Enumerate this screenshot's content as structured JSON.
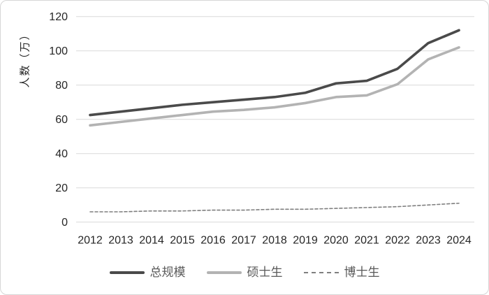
{
  "chart_data": {
    "type": "line",
    "title": "",
    "ylabel": "人数（万）",
    "xlabel": "",
    "ylim": [
      0,
      120
    ],
    "yticks": [
      0,
      20,
      40,
      60,
      80,
      100,
      120
    ],
    "grid": "horizontal",
    "grid_color": "#d9d9d9",
    "tick_text_color": "#262626",
    "legend_position": "bottom",
    "categories": [
      "2012",
      "2013",
      "2014",
      "2015",
      "2016",
      "2017",
      "2018",
      "2019",
      "2020",
      "2021",
      "2022",
      "2023",
      "2024"
    ],
    "series": [
      {
        "key": "total",
        "name": "总规模",
        "color": "#4a4a4a",
        "width": 3.6,
        "dash": null,
        "values": [
          62.5,
          64.5,
          66.5,
          68.5,
          70,
          71.5,
          73,
          75.5,
          81,
          82.5,
          89.5,
          104.5,
          112
        ]
      },
      {
        "key": "master",
        "name": "硕士生",
        "color": "#b3b3b3",
        "width": 3.6,
        "dash": null,
        "values": [
          56.5,
          58.5,
          60.5,
          62.5,
          64.5,
          65.5,
          67,
          69.5,
          73,
          74,
          80.5,
          95,
          102
        ]
      },
      {
        "key": "phd",
        "name": "博士生",
        "color": "#7f7f7f",
        "width": 1.6,
        "dash": "4 3",
        "values": [
          6,
          6,
          6.5,
          6.5,
          7,
          7,
          7.5,
          7.5,
          8,
          8.5,
          9,
          10,
          11
        ]
      }
    ]
  }
}
